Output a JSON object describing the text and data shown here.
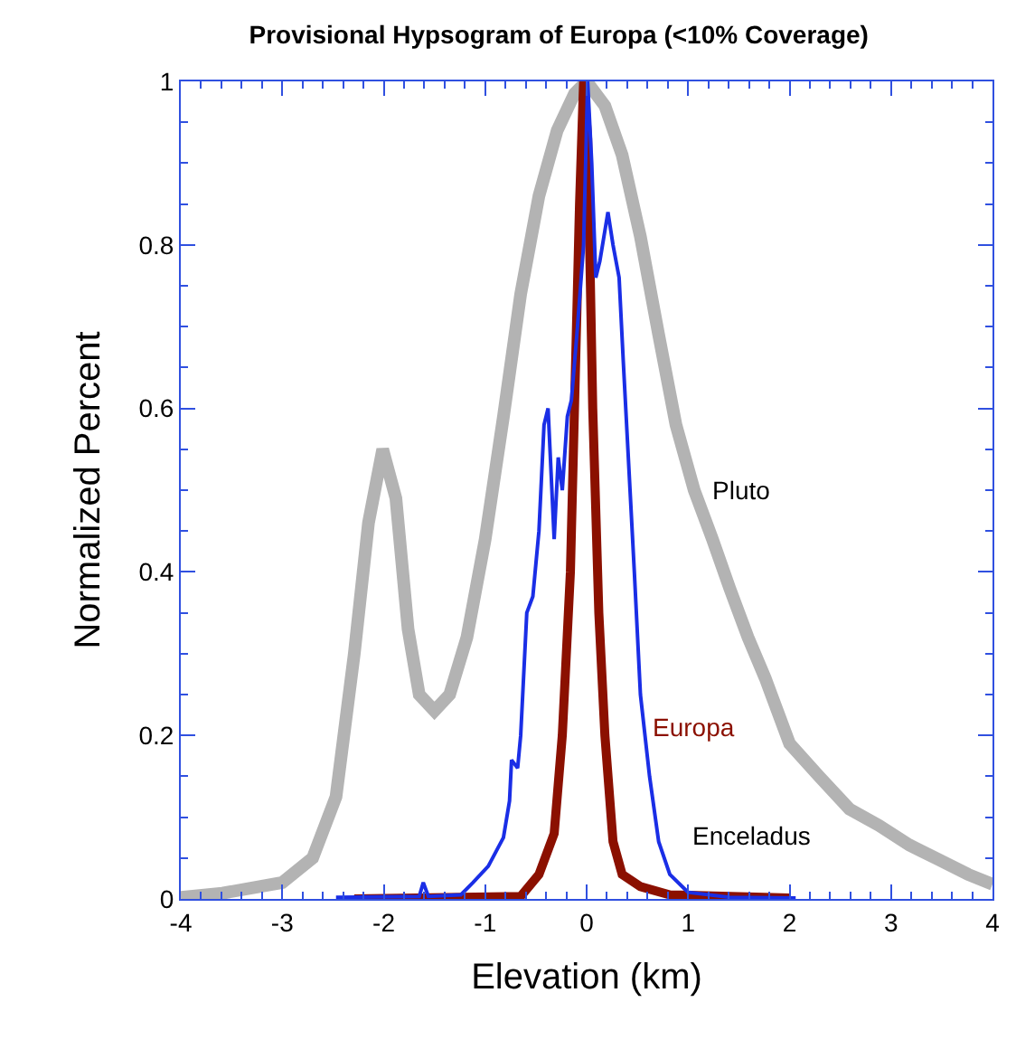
{
  "chart_data": {
    "type": "line",
    "title": "Provisional Hypsogram of Europa (<10% Coverage)",
    "xlabel": "Elevation (km)",
    "ylabel": "Normalized Percent",
    "xlim": [
      -4,
      4
    ],
    "ylim": [
      0,
      1
    ],
    "xticks": [
      -4,
      {
        "value": -3.8,
        "label": null
      },
      {
        "value": -3.6,
        "label": null
      },
      {
        "value": -3.4,
        "label": null
      },
      {
        "value": -3.2,
        "label": null
      },
      -3,
      {
        "value": -2.8,
        "label": null
      },
      {
        "value": -2.6,
        "label": null
      },
      {
        "value": -2.4,
        "label": null
      },
      {
        "value": -2.2,
        "label": null
      },
      -2,
      {
        "value": -1.8,
        "label": null
      },
      {
        "value": -1.6,
        "label": null
      },
      {
        "value": -1.4,
        "label": null
      },
      {
        "value": -1.2,
        "label": null
      },
      -1,
      {
        "value": -0.8,
        "label": null
      },
      {
        "value": -0.6,
        "label": null
      },
      {
        "value": -0.4,
        "label": null
      },
      {
        "value": -0.2,
        "label": null
      },
      0,
      {
        "value": 0.2,
        "label": null
      },
      {
        "value": 0.4,
        "label": null
      },
      {
        "value": 0.6,
        "label": null
      },
      {
        "value": 0.8,
        "label": null
      },
      1,
      {
        "value": 1.2,
        "label": null
      },
      {
        "value": 1.4,
        "label": null
      },
      {
        "value": 1.6,
        "label": null
      },
      {
        "value": 1.8,
        "label": null
      },
      2,
      {
        "value": 2.2,
        "label": null
      },
      {
        "value": 2.4,
        "label": null
      },
      {
        "value": 2.6,
        "label": null
      },
      {
        "value": 2.8,
        "label": null
      },
      3,
      {
        "value": 3.2,
        "label": null
      },
      {
        "value": 3.4,
        "label": null
      },
      {
        "value": 3.6,
        "label": null
      },
      {
        "value": 3.8,
        "label": null
      },
      4
    ],
    "yticks": [
      0,
      {
        "value": 0.05,
        "label": null
      },
      {
        "value": 0.1,
        "label": null
      },
      {
        "value": 0.15,
        "label": null
      },
      0.2,
      {
        "value": 0.25,
        "label": null
      },
      {
        "value": 0.3,
        "label": null
      },
      {
        "value": 0.35,
        "label": null
      },
      0.4,
      {
        "value": 0.45,
        "label": null
      },
      {
        "value": 0.5,
        "label": null
      },
      {
        "value": 0.55,
        "label": null
      },
      0.6,
      {
        "value": 0.65,
        "label": null
      },
      {
        "value": 0.7,
        "label": null
      },
      {
        "value": 0.75,
        "label": null
      },
      0.8,
      {
        "value": 0.85,
        "label": null
      },
      {
        "value": 0.9,
        "label": null
      },
      {
        "value": 0.95,
        "label": null
      },
      1
    ],
    "grid": false,
    "legend": false,
    "marker": "none",
    "line_style": "solid",
    "series": [
      {
        "name": "Pluto",
        "color": "#b3b3b3",
        "x": [
          -4,
          -3.59,
          -3.0,
          -2.7,
          -2.47,
          -2.29,
          -2.15,
          -2.01,
          -1.88,
          -1.76,
          -1.65,
          -1.5,
          -1.35,
          -1.18,
          -1.0,
          -0.82,
          -0.65,
          -0.47,
          -0.29,
          -0.12,
          0,
          0.18,
          0.35,
          0.53,
          0.71,
          0.88,
          1.06,
          1.24,
          1.41,
          1.59,
          1.76,
          2.0,
          2.29,
          2.59,
          2.88,
          3.18,
          3.47,
          3.76,
          4
        ],
        "values": [
          0.002,
          0.007,
          0.02,
          0.05,
          0.125,
          0.3,
          0.46,
          0.55,
          0.49,
          0.33,
          0.25,
          0.23,
          0.25,
          0.32,
          0.44,
          0.59,
          0.74,
          0.86,
          0.94,
          0.985,
          1.0,
          0.97,
          0.91,
          0.81,
          0.69,
          0.58,
          0.5,
          0.44,
          0.38,
          0.32,
          0.27,
          0.19,
          0.15,
          0.11,
          0.09,
          0.066,
          0.048,
          0.03,
          0.018
        ]
      },
      {
        "name": "Europa",
        "color": "#8b1000",
        "x": [
          -2.29,
          -0.65,
          -0.47,
          -0.32,
          -0.24,
          -0.16,
          -0.12,
          -0.07,
          -0.03,
          0.01,
          0.06,
          0.12,
          0.18,
          0.26,
          0.35,
          0.53,
          0.82,
          2.0
        ],
        "values": [
          0.0,
          0.003,
          0.03,
          0.08,
          0.2,
          0.4,
          0.6,
          0.85,
          1.0,
          0.93,
          0.6,
          0.35,
          0.2,
          0.07,
          0.03,
          0.015,
          0.005,
          0.001
        ]
      },
      {
        "name": "Enceladus",
        "color": "#1a2ee6",
        "x": [
          -2.47,
          -1.65,
          -1.61,
          -1.56,
          -1.24,
          -1.12,
          -0.97,
          -0.82,
          -0.76,
          -0.74,
          -0.68,
          -0.65,
          -0.59,
          -0.53,
          -0.47,
          -0.42,
          -0.38,
          -0.32,
          -0.28,
          -0.24,
          -0.19,
          -0.15,
          -0.09,
          -0.03,
          0.01,
          0.05,
          0.09,
          0.13,
          0.21,
          0.26,
          0.32,
          0.36,
          0.47,
          0.53,
          0.62,
          0.71,
          0.82,
          1.0,
          1.41,
          2.06
        ],
        "values": [
          0.002,
          0.003,
          0.02,
          0.003,
          0.005,
          0.02,
          0.04,
          0.075,
          0.12,
          0.17,
          0.16,
          0.2,
          0.35,
          0.37,
          0.45,
          0.58,
          0.6,
          0.44,
          0.54,
          0.5,
          0.59,
          0.61,
          0.7,
          0.8,
          1.0,
          0.9,
          0.76,
          0.78,
          0.84,
          0.8,
          0.76,
          0.66,
          0.4,
          0.25,
          0.15,
          0.07,
          0.03,
          0.008,
          0.002,
          0.001
        ]
      }
    ]
  }
}
